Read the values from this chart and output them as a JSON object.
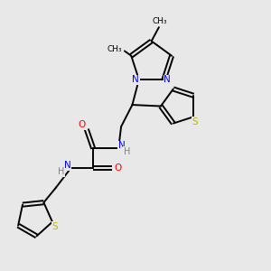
{
  "bg_color": "#e8e8e8",
  "bond_color": "#000000",
  "N_color": "#0000ff",
  "O_color": "#ff0000",
  "S_color": "#b8b800",
  "H_color": "#808080",
  "text_color": "#000000",
  "figsize": [
    3.0,
    3.0
  ],
  "dpi": 100,
  "xlim": [
    0,
    10
  ],
  "ylim": [
    0,
    10
  ]
}
